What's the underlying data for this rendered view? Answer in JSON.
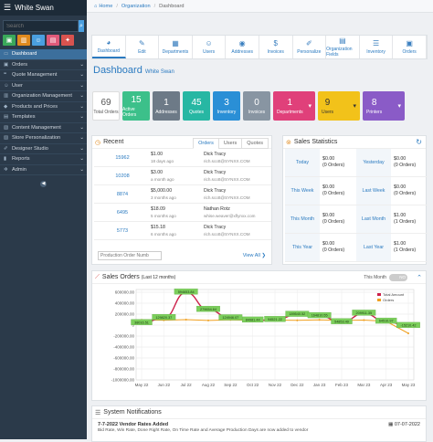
{
  "sidebar": {
    "title": "White Swan",
    "search_placeholder": "Search",
    "tile_colors": [
      "#3aa85a",
      "#e08a1e",
      "#4a9fe0",
      "#e05a7a",
      "#d9534f"
    ],
    "items": [
      {
        "label": "Dashboard",
        "icon": "monitor-icon",
        "active": true
      },
      {
        "label": "Orders",
        "icon": "cart-icon"
      },
      {
        "label": "Quote Management",
        "icon": "quote-icon"
      },
      {
        "label": "User",
        "icon": "user-icon"
      },
      {
        "label": "Organization Management",
        "icon": "building-icon"
      },
      {
        "label": "Products and Prices",
        "icon": "tag-icon"
      },
      {
        "label": "Templates",
        "icon": "template-icon"
      },
      {
        "label": "Content Management",
        "icon": "content-icon"
      },
      {
        "label": "Store Personalization",
        "icon": "store-icon"
      },
      {
        "label": "Designer Studio",
        "icon": "brush-icon"
      },
      {
        "label": "Reports",
        "icon": "chart-icon"
      },
      {
        "label": "Admin",
        "icon": "gear-icon"
      }
    ]
  },
  "breadcrumb": {
    "home": "Home",
    "org": "Organization",
    "current": "Dashboard"
  },
  "tabs": [
    {
      "label": "Dashboard",
      "icon": "gauge-icon",
      "glyph": "◕"
    },
    {
      "label": "Edit",
      "icon": "edit-icon",
      "glyph": "✎"
    },
    {
      "label": "Departments",
      "icon": "departments-icon",
      "glyph": "▦"
    },
    {
      "label": "Users",
      "icon": "users-icon",
      "glyph": "☺"
    },
    {
      "label": "Addresses",
      "icon": "map-pin-icon",
      "glyph": "◉"
    },
    {
      "label": "Invoices",
      "icon": "dollar-icon",
      "glyph": "$"
    },
    {
      "label": "Personalize",
      "icon": "brush-icon",
      "glyph": "✐"
    },
    {
      "label": "Organization Fields",
      "icon": "fields-icon",
      "glyph": "▤"
    },
    {
      "label": "Inventory",
      "icon": "inventory-icon",
      "glyph": "☰"
    },
    {
      "label": "Orders",
      "icon": "cart-icon",
      "glyph": "▣"
    }
  ],
  "page": {
    "title": "Dashboard",
    "subtitle": "White Swan"
  },
  "stats": [
    {
      "value": "69",
      "label": "Total Orders",
      "color": "#ffffff",
      "text": "#555555"
    },
    {
      "value": "15",
      "label": "Active Orders",
      "color": "#3cc08a",
      "text": "#ffffff"
    },
    {
      "value": "1",
      "label": "Addresses",
      "color": "#6d7a87",
      "text": "#ffffff"
    },
    {
      "value": "45",
      "label": "Quotes",
      "color": "#27b7a3",
      "text": "#ffffff"
    },
    {
      "value": "3",
      "label": "Inventory",
      "color": "#2a8fd6",
      "text": "#ffffff"
    },
    {
      "value": "0",
      "label": "Invoices",
      "color": "#8895a2",
      "text": "#ffffff"
    }
  ],
  "stats_wide": [
    {
      "value": "1",
      "label": "Departments",
      "color": "#e0407a"
    },
    {
      "value": "9",
      "label": "Users",
      "color": "#f2c21a"
    },
    {
      "value": "8",
      "label": "Printers",
      "color": "#8a5bc7"
    }
  ],
  "recent": {
    "title": "Recent",
    "tabs": [
      "Orders",
      "Users",
      "Quotes"
    ],
    "rows": [
      {
        "id": "15962",
        "amount": "$1.00",
        "date": "18 days ago",
        "name": "Dick Tracy",
        "email": "rich.scott@SYNXX.COM"
      },
      {
        "id": "10208",
        "amount": "$3.00",
        "date": "a month ago",
        "name": "Dick Tracy",
        "email": "rich.scott@SYNXX.COM"
      },
      {
        "id": "8874",
        "amount": "$5,000.00",
        "date": "3 months ago",
        "name": "Dick Tracy",
        "email": "rich.scott@SYNXX.COM"
      },
      {
        "id": "6495",
        "amount": "$18.09",
        "date": "5 months ago",
        "name": "Nathan Rotz",
        "email": "whise.weaver@xflynxx.com"
      },
      {
        "id": "5773",
        "amount": "$15.18",
        "date": "6 months ago",
        "name": "Dick Tracy",
        "email": "rich.scott@SYNXX.COM"
      }
    ],
    "search_placeholder": "Production Order Numb",
    "view_all": "View All"
  },
  "sales": {
    "title": "Sales Statistics",
    "cells": [
      {
        "label": "Today",
        "amount": "$0.00",
        "orders": "(0 Orders)"
      },
      {
        "label": "Yesterday",
        "amount": "$0.00",
        "orders": "(0 Orders)"
      },
      {
        "label": "This Week",
        "amount": "$0.00",
        "orders": "(0 Orders)"
      },
      {
        "label": "Last Week",
        "amount": "$0.00",
        "orders": "(0 Orders)"
      },
      {
        "label": "This Month",
        "amount": "$0.00",
        "orders": "(0 Orders)"
      },
      {
        "label": "Last Month",
        "amount": "$1.00",
        "orders": "(1 Orders)"
      },
      {
        "label": "This Year",
        "amount": "$0.00",
        "orders": "(0 Orders)"
      },
      {
        "label": "Last Year",
        "amount": "$1.00",
        "orders": "(1 Orders)"
      }
    ]
  },
  "orders_panel": {
    "title": "Sales Orders",
    "subtitle": "(Last 12 months)",
    "toggle_label": "This Month",
    "toggle_state": "NO"
  },
  "chart_data": {
    "type": "line",
    "categories": [
      "May 22",
      "Jun 22",
      "Jul 22",
      "Aug 22",
      "Sep 22",
      "Oct 22",
      "Nov 22",
      "Dec 22",
      "Jan 23",
      "Feb 23",
      "Mar 23",
      "Apr 23",
      "May 23"
    ],
    "y_ticks": [
      "600000.00",
      "400000.00",
      "200000.00",
      "0",
      "-200000.00",
      "-400000.00",
      "-600000.00",
      "-800000.00",
      "-1000000.00"
    ],
    "ylim": [
      -1000000,
      650000
    ],
    "series": [
      {
        "name": "Total Amount",
        "color": "#cc1f4a",
        "values": [
          38000,
          130000,
          595000,
          280000,
          125000,
          85000,
          95000,
          190000,
          165000,
          55000,
          210000,
          65000,
          -15000
        ],
        "labels": [
          "38016.51",
          "129820.37",
          "594653.84",
          "279654.64",
          "124946.07",
          "84981.44",
          "94521.22",
          "189540.52",
          "164810.55",
          "54853.49",
          "209911.35",
          "64510.97",
          "-15210.42"
        ]
      },
      {
        "name": "Orders",
        "color": "#f0a020",
        "values": [
          95000,
          90000,
          100000,
          85000,
          95000,
          90000,
          92000,
          88000,
          95000,
          85000,
          92000,
          70000,
          -150000
        ],
        "labels": []
      }
    ],
    "grid": true,
    "legend": "top-right"
  },
  "notifications": {
    "title": "System Notifications",
    "item_title": "7-7-2022 Vendor Rates Added",
    "item_date": "07-07-2022",
    "item_body": "Bid Rate, Win Rate, Done Right Rate, On Time Rate and Average Production Days are now added to vendor"
  }
}
